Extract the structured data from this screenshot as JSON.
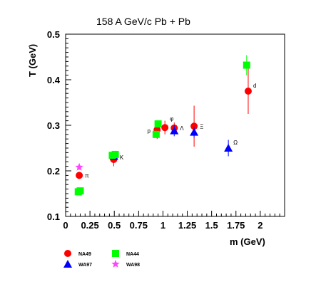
{
  "chart_data": {
    "type": "scatter",
    "title": "158 A GeV/c Pb + Pb",
    "xlabel": "m (GeV)",
    "ylabel": "T (GeV)",
    "xlim": [
      0,
      2.25
    ],
    "ylim": [
      0.1,
      0.5
    ],
    "xticks": [
      0,
      0.25,
      0.5,
      0.75,
      1,
      1.25,
      1.5,
      1.75,
      2
    ],
    "xtick_labels": [
      "0",
      "0.25",
      "0.5",
      "0.75",
      "1",
      "1.25",
      "1.5",
      "1.75",
      "2"
    ],
    "yticks": [
      0.1,
      0.2,
      0.3,
      0.4,
      0.5
    ],
    "ytick_labels": [
      "0.1",
      "0.2",
      "0.3",
      "0.4",
      "0.5"
    ],
    "grid": false,
    "legend_position": "bottom-left",
    "series": [
      {
        "name": "NA49",
        "marker": "circle",
        "color": "#ff0000",
        "points": [
          {
            "x": 0.14,
            "y": 0.19,
            "err": 0.008
          },
          {
            "x": 0.494,
            "y": 0.225,
            "err": 0.015
          },
          {
            "x": 0.94,
            "y": 0.29,
            "err": 0.02
          },
          {
            "x": 1.02,
            "y": 0.295,
            "err": 0.015
          },
          {
            "x": 1.116,
            "y": 0.294,
            "err": 0.012
          },
          {
            "x": 1.32,
            "y": 0.298,
            "err": 0.045
          },
          {
            "x": 1.876,
            "y": 0.375,
            "err": 0.05
          }
        ]
      },
      {
        "name": "WA97",
        "marker": "triangle",
        "color": "#0000ff",
        "points": [
          {
            "x": 0.497,
            "y": 0.232,
            "err": 0.008
          },
          {
            "x": 1.116,
            "y": 0.288,
            "err": 0.012
          },
          {
            "x": 1.32,
            "y": 0.285,
            "err": 0.012
          },
          {
            "x": 1.672,
            "y": 0.25,
            "err": 0.018
          }
        ]
      },
      {
        "name": "NA44",
        "marker": "square",
        "color": "#00ff00",
        "points": [
          {
            "x": 0.13,
            "y": 0.154,
            "err": 0.004
          },
          {
            "x": 0.15,
            "y": 0.156,
            "err": 0.004
          },
          {
            "x": 0.48,
            "y": 0.234,
            "err": 0.008
          },
          {
            "x": 0.51,
            "y": 0.236,
            "err": 0.008
          },
          {
            "x": 0.93,
            "y": 0.28,
            "err": 0.008
          },
          {
            "x": 0.95,
            "y": 0.303,
            "err": 0.008
          },
          {
            "x": 1.86,
            "y": 0.432,
            "err": 0.022
          }
        ]
      },
      {
        "name": "WA98",
        "marker": "star",
        "color": "#ff44ff",
        "points": [
          {
            "x": 0.14,
            "y": 0.208,
            "err": 0.006
          }
        ]
      }
    ],
    "annotations": [
      {
        "text": "π",
        "x": 0.14,
        "y": 0.19,
        "side": "right"
      },
      {
        "text": "K",
        "x": 0.497,
        "y": 0.23,
        "side": "right"
      },
      {
        "text": "p",
        "x": 0.93,
        "y": 0.288,
        "side": "left"
      },
      {
        "text": "φ",
        "x": 1.02,
        "y": 0.302,
        "side": "right-up"
      },
      {
        "text": "Λ",
        "x": 1.116,
        "y": 0.294,
        "side": "right"
      },
      {
        "text": "Ξ",
        "x": 1.32,
        "y": 0.298,
        "side": "right"
      },
      {
        "text": "Ω",
        "x": 1.672,
        "y": 0.25,
        "side": "right-up"
      },
      {
        "text": "d",
        "x": 1.876,
        "y": 0.375,
        "side": "right-up"
      }
    ]
  }
}
